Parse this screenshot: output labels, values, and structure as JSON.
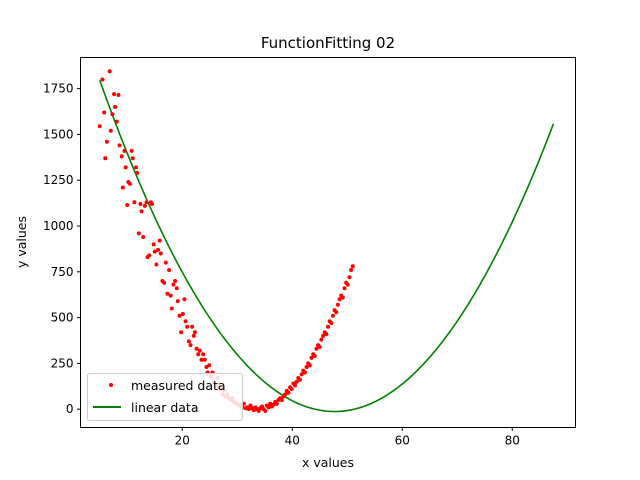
{
  "chart_data": {
    "type": "scatter",
    "title": "FunctionFitting 02",
    "xlabel": "x values",
    "ylabel": "y values",
    "xlim": [
      1.5,
      91.5
    ],
    "ylim": [
      -100,
      1920
    ],
    "xticks": [
      "20",
      "40",
      "60",
      "80"
    ],
    "yticks": [
      "0",
      "250",
      "500",
      "750",
      "1000",
      "1250",
      "1500",
      "1750"
    ],
    "xtick_values": [
      20,
      40,
      60,
      80
    ],
    "ytick_values": [
      0,
      250,
      500,
      750,
      1000,
      1250,
      1500,
      1750
    ],
    "grid": false,
    "legend_position": "lower-left",
    "legend": [
      "measured data",
      "linear data"
    ],
    "colors": {
      "measured": "#ff0000",
      "fit": "#008000"
    },
    "series": [
      {
        "name": "measured data",
        "kind": "scatter",
        "color": "#ff0000",
        "points": [
          [
            5.0,
            1545
          ],
          [
            5.5,
            1800
          ],
          [
            5.8,
            1620
          ],
          [
            6.0,
            1370
          ],
          [
            6.3,
            1460
          ],
          [
            6.8,
            1845
          ],
          [
            7.0,
            1520
          ],
          [
            7.3,
            1610
          ],
          [
            7.6,
            1720
          ],
          [
            7.8,
            1650
          ],
          [
            8.1,
            1570
          ],
          [
            8.4,
            1715
          ],
          [
            8.6,
            1440
          ],
          [
            9.0,
            1380
          ],
          [
            9.2,
            1210
          ],
          [
            9.5,
            1410
          ],
          [
            9.7,
            1320
          ],
          [
            10.0,
            1115
          ],
          [
            10.2,
            1240
          ],
          [
            10.5,
            1230
          ],
          [
            10.8,
            1410
          ],
          [
            11.0,
            1370
          ],
          [
            11.3,
            1130
          ],
          [
            11.6,
            1320
          ],
          [
            11.8,
            1290
          ],
          [
            12.1,
            960
          ],
          [
            12.4,
            1120
          ],
          [
            12.6,
            1080
          ],
          [
            12.9,
            940
          ],
          [
            13.2,
            1110
          ],
          [
            13.5,
            1130
          ],
          [
            13.7,
            830
          ],
          [
            14.0,
            840
          ],
          [
            14.3,
            1130
          ],
          [
            14.5,
            1120
          ],
          [
            14.8,
            900
          ],
          [
            15.0,
            860
          ],
          [
            15.3,
            790
          ],
          [
            15.6,
            870
          ],
          [
            15.9,
            920
          ],
          [
            16.1,
            850
          ],
          [
            16.4,
            700
          ],
          [
            16.7,
            690
          ],
          [
            17.0,
            800
          ],
          [
            17.3,
            630
          ],
          [
            17.6,
            760
          ],
          [
            17.9,
            620
          ],
          [
            18.1,
            550
          ],
          [
            18.4,
            680
          ],
          [
            18.7,
            700
          ],
          [
            19.0,
            660
          ],
          [
            19.2,
            590
          ],
          [
            19.5,
            510
          ],
          [
            19.8,
            420
          ],
          [
            20.1,
            520
          ],
          [
            20.4,
            600
          ],
          [
            20.6,
            480
          ],
          [
            20.9,
            450
          ],
          [
            21.2,
            370
          ],
          [
            21.5,
            350
          ],
          [
            21.8,
            450
          ],
          [
            22.1,
            400
          ],
          [
            22.3,
            420
          ],
          [
            22.6,
            330
          ],
          [
            22.9,
            300
          ],
          [
            23.2,
            320
          ],
          [
            23.5,
            270
          ],
          [
            23.8,
            300
          ],
          [
            24.1,
            270
          ],
          [
            24.4,
            230
          ],
          [
            24.6,
            200
          ],
          [
            24.9,
            240
          ],
          [
            25.2,
            180
          ],
          [
            25.5,
            200
          ],
          [
            25.8,
            150
          ],
          [
            26.1,
            130
          ],
          [
            26.4,
            170
          ],
          [
            26.7,
            120
          ],
          [
            27.0,
            110
          ],
          [
            27.3,
            80
          ],
          [
            27.6,
            100
          ],
          [
            27.9,
            70
          ],
          [
            28.2,
            80
          ],
          [
            28.5,
            60
          ],
          [
            28.8,
            50
          ],
          [
            29.1,
            60
          ],
          [
            29.4,
            40
          ],
          [
            29.7,
            35
          ],
          [
            30.0,
            30
          ],
          [
            30.3,
            20
          ],
          [
            30.6,
            25
          ],
          [
            30.9,
            10
          ],
          [
            31.2,
            30
          ],
          [
            31.5,
            5
          ],
          [
            31.8,
            10
          ],
          [
            32.1,
            0
          ],
          [
            32.4,
            20
          ],
          [
            32.7,
            5
          ],
          [
            33.0,
            -5
          ],
          [
            33.3,
            10
          ],
          [
            33.6,
            0
          ],
          [
            33.9,
            -10
          ],
          [
            34.2,
            5
          ],
          [
            34.5,
            15
          ],
          [
            34.8,
            0
          ],
          [
            35.1,
            -10
          ],
          [
            35.4,
            20
          ],
          [
            35.7,
            10
          ],
          [
            36.0,
            30
          ],
          [
            36.3,
            15
          ],
          [
            36.6,
            25
          ],
          [
            36.9,
            40
          ],
          [
            37.2,
            30
          ],
          [
            37.5,
            50
          ],
          [
            37.8,
            60
          ],
          [
            38.1,
            50
          ],
          [
            38.4,
            70
          ],
          [
            38.7,
            80
          ],
          [
            39.0,
            100
          ],
          [
            39.3,
            90
          ],
          [
            39.6,
            120
          ],
          [
            39.9,
            110
          ],
          [
            40.2,
            140
          ],
          [
            40.5,
            130
          ],
          [
            40.8,
            150
          ],
          [
            41.1,
            170
          ],
          [
            41.4,
            160
          ],
          [
            41.7,
            190
          ],
          [
            42.0,
            210
          ],
          [
            42.3,
            200
          ],
          [
            42.6,
            230
          ],
          [
            42.9,
            250
          ],
          [
            43.2,
            240
          ],
          [
            43.5,
            280
          ],
          [
            43.8,
            300
          ],
          [
            44.1,
            290
          ],
          [
            44.4,
            330
          ],
          [
            44.7,
            350
          ],
          [
            45.0,
            340
          ],
          [
            45.3,
            380
          ],
          [
            45.6,
            400
          ],
          [
            45.9,
            420
          ],
          [
            46.2,
            410
          ],
          [
            46.5,
            450
          ],
          [
            46.8,
            480
          ],
          [
            47.1,
            470
          ],
          [
            47.4,
            510
          ],
          [
            47.7,
            540
          ],
          [
            48.0,
            530
          ],
          [
            48.3,
            570
          ],
          [
            48.6,
            600
          ],
          [
            48.9,
            620
          ],
          [
            49.2,
            610
          ],
          [
            49.5,
            660
          ],
          [
            49.8,
            690
          ],
          [
            50.1,
            680
          ],
          [
            50.4,
            720
          ],
          [
            50.7,
            760
          ],
          [
            51.0,
            780
          ]
        ]
      },
      {
        "name": "linear data",
        "kind": "line",
        "color": "#008000",
        "model": {
          "a": 0.992,
          "x0": 47.7,
          "b": -12.7
        },
        "x_range": [
          5.0,
          87.5
        ]
      }
    ]
  }
}
